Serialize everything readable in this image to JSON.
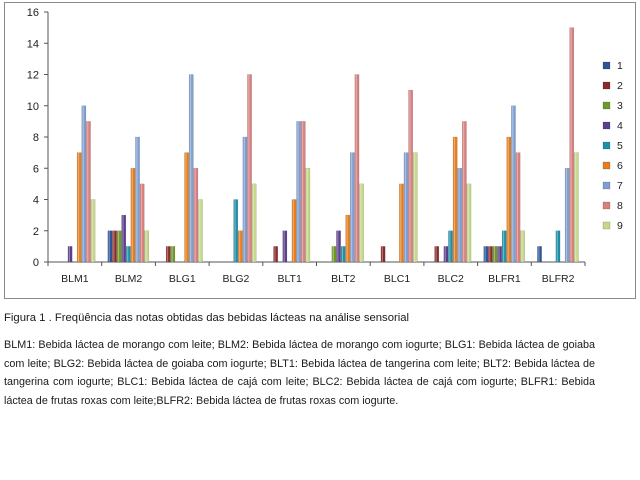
{
  "chart_data": {
    "type": "bar",
    "title": "",
    "xlabel": "",
    "ylabel": "",
    "ylim": [
      0,
      16
    ],
    "yticks": [
      0,
      2,
      4,
      6,
      8,
      10,
      12,
      14,
      16
    ],
    "grid": false,
    "legend_position": "right",
    "categories": [
      "BLM1",
      "BLM2",
      "BLG1",
      "BLG2",
      "BLT1",
      "BLT2",
      "BLC1",
      "BLC2",
      "BLFR1",
      "BLFR2"
    ],
    "series": [
      {
        "name": "1",
        "color": "#2f5597",
        "values": [
          0,
          2,
          0,
          0,
          0,
          0,
          0,
          0,
          1,
          1
        ]
      },
      {
        "name": "2",
        "color": "#8b2a2a",
        "values": [
          0,
          2,
          1,
          0,
          1,
          0,
          1,
          1,
          1,
          0
        ]
      },
      {
        "name": "3",
        "color": "#6f9a2a",
        "values": [
          0,
          2,
          1,
          0,
          0,
          1,
          0,
          0,
          1,
          0
        ]
      },
      {
        "name": "4",
        "color": "#5b3f8c",
        "values": [
          1,
          3,
          0,
          0,
          2,
          2,
          0,
          1,
          1,
          0
        ]
      },
      {
        "name": "5",
        "color": "#1f8fa8",
        "values": [
          0,
          1,
          0,
          4,
          0,
          1,
          0,
          2,
          2,
          2
        ]
      },
      {
        "name": "6",
        "color": "#e67e1e",
        "values": [
          7,
          6,
          7,
          2,
          4,
          3,
          5,
          8,
          8,
          0
        ]
      },
      {
        "name": "7",
        "color": "#7f9fd0",
        "values": [
          10,
          8,
          12,
          8,
          9,
          7,
          7,
          6,
          10,
          6
        ]
      },
      {
        "name": "8",
        "color": "#d87f7f",
        "values": [
          9,
          5,
          6,
          12,
          9,
          12,
          11,
          9,
          7,
          15
        ]
      },
      {
        "name": "9",
        "color": "#c4d88a",
        "values": [
          4,
          2,
          4,
          5,
          6,
          5,
          7,
          5,
          2,
          7
        ]
      }
    ]
  },
  "caption": "Figura 1 . Freqüência das notas obtidas das bebidas lácteas na análise sensorial",
  "legend_text": "BLM1: Bebida láctea de morango com leite; BLM2: Bebida láctea de morango com iogurte; BLG1: Bebida láctea de goiaba com leite; BLG2: Bebida láctea de goiaba com iogurte; BLT1: Bebida láctea de tangerina com leite; BLT2: Bebida láctea de tangerina com iogurte; BLC1: Bebida láctea de cajá com leite; BLC2: Bebida láctea de cajá com iogurte; BLFR1: Bebida láctea de frutas roxas com leite;BLFR2: Bebida láctea de frutas roxas com iogurte."
}
